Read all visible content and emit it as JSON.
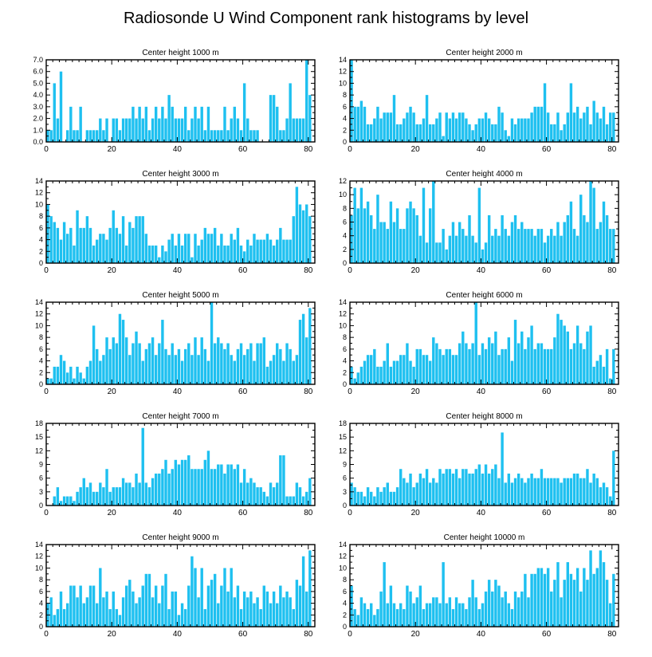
{
  "figure": {
    "title": "Radiosonde U Wind Component rank histograms by level",
    "bar_color": "#1ec0f0",
    "axis_color": "#000000"
  },
  "chart_data": [
    {
      "type": "bar",
      "title": "Center height 1000 m",
      "xlim": [
        0,
        82
      ],
      "ylim": [
        0,
        7
      ],
      "xticks": [
        "0",
        "20",
        "40",
        "60",
        "80"
      ],
      "yticks": [
        "0.0",
        "1.0",
        "2.0",
        "3.0",
        "4.0",
        "5.0",
        "6.0",
        "7.0"
      ],
      "ticks_side": "left",
      "values": [
        1,
        1,
        5,
        2,
        6,
        0,
        1,
        3,
        1,
        1,
        3,
        0,
        1,
        1,
        1,
        1,
        2,
        1,
        2,
        0,
        2,
        2,
        1,
        2,
        2,
        2,
        3,
        2,
        3,
        2,
        3,
        1,
        2,
        3,
        2,
        3,
        2,
        4,
        3,
        2,
        2,
        2,
        3,
        1,
        2,
        3,
        2,
        3,
        1,
        3,
        1,
        1,
        1,
        1,
        3,
        1,
        2,
        3,
        2,
        1,
        5,
        2,
        1,
        1,
        1,
        0,
        0,
        0,
        4,
        4,
        3,
        1,
        1,
        2,
        5,
        2,
        2,
        2,
        2,
        7,
        4
      ]
    },
    {
      "type": "bar",
      "title": "Center height 2000 m",
      "xlim": [
        0,
        82
      ],
      "ylim": [
        0,
        14
      ],
      "xticks": [
        "0",
        "20",
        "40",
        "60",
        "80"
      ],
      "yticks": [
        "0",
        "2",
        "4",
        "6",
        "8",
        "10",
        "12",
        "14"
      ],
      "ticks_side": "left",
      "values": [
        14,
        6,
        6,
        7,
        6,
        3,
        3,
        4,
        6,
        4,
        5,
        5,
        5,
        8,
        3,
        3,
        4,
        5,
        6,
        5,
        3,
        3,
        4,
        8,
        3,
        3,
        4,
        5,
        1,
        5,
        4,
        5,
        4,
        5,
        5,
        4,
        3,
        2,
        3,
        4,
        4,
        5,
        4,
        3,
        3,
        6,
        5,
        2,
        1,
        4,
        3,
        4,
        4,
        4,
        4,
        5,
        6,
        6,
        6,
        10,
        5,
        3,
        3,
        5,
        2,
        3,
        5,
        10,
        5,
        6,
        4,
        5,
        6,
        3,
        7,
        5,
        4,
        6,
        3,
        5,
        5
      ]
    },
    {
      "type": "bar",
      "title": "Center height 3000 m",
      "xlim": [
        0,
        82
      ],
      "ylim": [
        0,
        14
      ],
      "xticks": [
        "0",
        "20",
        "40",
        "60",
        "80"
      ],
      "yticks": [
        "0",
        "2",
        "4",
        "6",
        "8",
        "10",
        "12",
        "14"
      ],
      "ticks_side": "left",
      "values": [
        10,
        8,
        7,
        6,
        4,
        7,
        5,
        6,
        3,
        9,
        6,
        6,
        8,
        6,
        3,
        4,
        5,
        5,
        4,
        6,
        9,
        6,
        5,
        8,
        3,
        7,
        6,
        8,
        8,
        8,
        5,
        3,
        3,
        3,
        1,
        3,
        2,
        4,
        5,
        3,
        5,
        3,
        5,
        5,
        1,
        5,
        3,
        4,
        6,
        5,
        5,
        6,
        3,
        5,
        3,
        3,
        5,
        4,
        6,
        3,
        2,
        4,
        3,
        5,
        4,
        4,
        4,
        5,
        4,
        3,
        4,
        6,
        4,
        4,
        4,
        8,
        13,
        10,
        9,
        10,
        8
      ]
    },
    {
      "type": "bar",
      "title": "Center height 4000 m",
      "xlim": [
        0,
        82
      ],
      "ylim": [
        0,
        12
      ],
      "xticks": [
        "0",
        "20",
        "40",
        "60",
        "80"
      ],
      "yticks": [
        "0",
        "2",
        "4",
        "6",
        "8",
        "10",
        "12"
      ],
      "ticks_side": "right",
      "values": [
        7,
        11,
        8,
        11,
        8,
        9,
        7,
        5,
        10,
        6,
        6,
        5,
        9,
        6,
        8,
        5,
        5,
        8,
        9,
        8,
        7,
        4,
        11,
        3,
        8,
        12,
        3,
        3,
        5,
        2,
        4,
        6,
        4,
        6,
        5,
        4,
        7,
        4,
        3,
        11,
        2,
        3,
        7,
        4,
        5,
        4,
        7,
        5,
        4,
        6,
        7,
        5,
        6,
        5,
        5,
        5,
        4,
        5,
        5,
        3,
        4,
        5,
        4,
        6,
        4,
        6,
        7,
        9,
        5,
        4,
        10,
        7,
        6,
        12,
        11,
        5,
        6,
        9,
        7,
        5,
        5
      ]
    },
    {
      "type": "bar",
      "title": "Center height 5000 m",
      "xlim": [
        0,
        82
      ],
      "ylim": [
        0,
        14
      ],
      "xticks": [
        "0",
        "20",
        "40",
        "60",
        "80"
      ],
      "yticks": [
        "0",
        "2",
        "4",
        "6",
        "8",
        "10",
        "12",
        "14"
      ],
      "ticks_side": "left",
      "values": [
        1,
        1,
        3,
        3,
        5,
        4,
        2,
        3,
        1,
        3,
        2,
        1,
        3,
        4,
        10,
        6,
        4,
        5,
        8,
        6,
        8,
        7,
        12,
        11,
        8,
        5,
        7,
        9,
        7,
        4,
        6,
        7,
        8,
        5,
        7,
        11,
        6,
        5,
        7,
        5,
        6,
        4,
        6,
        7,
        5,
        8,
        5,
        8,
        6,
        4,
        14,
        7,
        8,
        7,
        6,
        7,
        5,
        4,
        6,
        7,
        5,
        6,
        7,
        4,
        7,
        7,
        8,
        3,
        4,
        5,
        7,
        6,
        4,
        7,
        6,
        4,
        5,
        11,
        12,
        8,
        13
      ]
    },
    {
      "type": "bar",
      "title": "Center height 6000 m",
      "xlim": [
        0,
        82
      ],
      "ylim": [
        0,
        14
      ],
      "xticks": [
        "0",
        "20",
        "40",
        "60",
        "80"
      ],
      "yticks": [
        "0",
        "2",
        "4",
        "6",
        "8",
        "10",
        "12",
        "14"
      ],
      "ticks_side": "right",
      "values": [
        3,
        1,
        2,
        3,
        4,
        5,
        5,
        6,
        3,
        3,
        4,
        7,
        3,
        4,
        4,
        5,
        5,
        7,
        4,
        3,
        6,
        6,
        5,
        5,
        4,
        8,
        7,
        6,
        5,
        6,
        6,
        5,
        5,
        7,
        9,
        7,
        6,
        7,
        14,
        5,
        7,
        6,
        8,
        7,
        9,
        5,
        6,
        6,
        8,
        4,
        11,
        7,
        9,
        6,
        8,
        10,
        6,
        7,
        7,
        6,
        6,
        6,
        8,
        12,
        11,
        10,
        9,
        6,
        7,
        10,
        7,
        6,
        9,
        10,
        3,
        4,
        5,
        3,
        6,
        1,
        6
      ]
    },
    {
      "type": "bar",
      "title": "Center height 7000 m",
      "xlim": [
        0,
        82
      ],
      "ylim": [
        0,
        18
      ],
      "xticks": [
        "0",
        "20",
        "40",
        "60",
        "80"
      ],
      "yticks": [
        "0",
        "3",
        "6",
        "9",
        "12",
        "15",
        "18"
      ],
      "ticks_side": "left",
      "values": [
        0,
        0,
        2,
        4,
        1,
        2,
        2,
        2,
        1,
        3,
        4,
        6,
        4,
        5,
        3,
        3,
        5,
        4,
        8,
        3,
        4,
        4,
        4,
        6,
        5,
        5,
        4,
        7,
        5,
        17,
        5,
        4,
        6,
        7,
        7,
        8,
        10,
        7,
        8,
        10,
        9,
        10,
        10,
        11,
        8,
        8,
        8,
        8,
        10,
        12,
        8,
        8,
        9,
        9,
        7,
        9,
        9,
        8,
        9,
        5,
        8,
        5,
        6,
        5,
        4,
        4,
        3,
        2,
        5,
        4,
        5,
        11,
        11,
        2,
        2,
        2,
        5,
        4,
        2,
        3,
        6
      ]
    },
    {
      "type": "bar",
      "title": "Center height 8000 m",
      "xlim": [
        0,
        82
      ],
      "ylim": [
        0,
        18
      ],
      "xticks": [
        "0",
        "20",
        "40",
        "60",
        "80"
      ],
      "yticks": [
        "0",
        "3",
        "6",
        "9",
        "12",
        "15",
        "18"
      ],
      "ticks_side": "right",
      "values": [
        5,
        4,
        3,
        3,
        2,
        4,
        3,
        2,
        4,
        3,
        4,
        5,
        3,
        3,
        4,
        8,
        6,
        5,
        7,
        4,
        5,
        7,
        6,
        8,
        5,
        6,
        5,
        8,
        7,
        8,
        8,
        7,
        8,
        6,
        8,
        8,
        7,
        7,
        8,
        9,
        7,
        9,
        7,
        8,
        9,
        6,
        16,
        5,
        7,
        5,
        6,
        7,
        6,
        5,
        6,
        7,
        6,
        6,
        8,
        6,
        6,
        6,
        6,
        6,
        5,
        6,
        6,
        6,
        7,
        7,
        6,
        6,
        8,
        5,
        7,
        6,
        4,
        5,
        4,
        2,
        12
      ]
    },
    {
      "type": "bar",
      "title": "Center height 9000 m",
      "xlim": [
        0,
        82
      ],
      "ylim": [
        0,
        14
      ],
      "xticks": [
        "0",
        "20",
        "40",
        "60",
        "80"
      ],
      "yticks": [
        "0",
        "2",
        "4",
        "6",
        "8",
        "10",
        "12",
        "14"
      ],
      "ticks_side": "left",
      "values": [
        4,
        5,
        2,
        3,
        6,
        3,
        4,
        7,
        7,
        5,
        7,
        4,
        5,
        7,
        7,
        4,
        10,
        5,
        6,
        3,
        6,
        3,
        2,
        5,
        7,
        8,
        6,
        4,
        5,
        7,
        9,
        9,
        5,
        7,
        4,
        7,
        9,
        3,
        6,
        6,
        2,
        4,
        3,
        7,
        12,
        10,
        5,
        10,
        3,
        7,
        8,
        9,
        4,
        7,
        10,
        6,
        10,
        5,
        7,
        3,
        6,
        5,
        6,
        4,
        5,
        3,
        7,
        6,
        4,
        6,
        4,
        7,
        5,
        6,
        5,
        3,
        8,
        7,
        12,
        6,
        13
      ]
    },
    {
      "type": "bar",
      "title": "Center height 10000 m",
      "xlim": [
        0,
        82
      ],
      "ylim": [
        0,
        14
      ],
      "xticks": [
        "0",
        "20",
        "40",
        "60",
        "80"
      ],
      "yticks": [
        "0",
        "2",
        "4",
        "6",
        "8",
        "10",
        "12",
        "14"
      ],
      "ticks_side": "right",
      "values": [
        7,
        3,
        2,
        5,
        4,
        3,
        4,
        2,
        3,
        6,
        11,
        4,
        7,
        4,
        3,
        4,
        3,
        7,
        6,
        4,
        5,
        7,
        3,
        4,
        4,
        5,
        5,
        4,
        11,
        4,
        5,
        3,
        5,
        4,
        4,
        3,
        5,
        8,
        5,
        3,
        4,
        6,
        8,
        6,
        8,
        7,
        5,
        6,
        4,
        3,
        6,
        5,
        6,
        9,
        5,
        9,
        9,
        10,
        10,
        9,
        10,
        6,
        8,
        11,
        5,
        8,
        11,
        9,
        8,
        10,
        6,
        10,
        8,
        13,
        9,
        10,
        13,
        11,
        8,
        4,
        9
      ]
    }
  ]
}
